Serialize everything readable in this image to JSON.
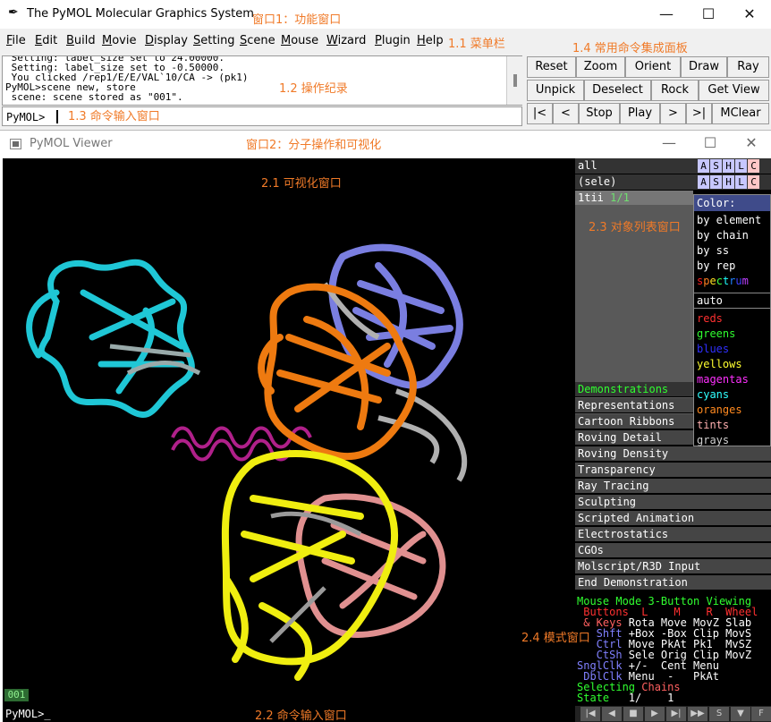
{
  "window1": {
    "title": "The PyMOL Molecular Graphics System",
    "controls": {
      "minimize": "—",
      "maximize": "☐",
      "close": "✕"
    },
    "menu": [
      {
        "label": "File",
        "u": "F",
        "rest": "ile"
      },
      {
        "label": "Edit",
        "u": "E",
        "rest": "dit"
      },
      {
        "label": "Build",
        "u": "B",
        "rest": "uild"
      },
      {
        "label": "Movie",
        "u": "M",
        "rest": "ovie"
      },
      {
        "label": "Display",
        "u": "D",
        "rest": "isplay"
      },
      {
        "label": "Setting",
        "u": "S",
        "rest": "etting"
      },
      {
        "label": "Scene",
        "u": "S",
        "rest": "cene",
        "pre": ""
      },
      {
        "label": "Mouse",
        "u": "M",
        "rest": "ouse"
      },
      {
        "label": "Wizard",
        "u": "W",
        "rest": "izard"
      },
      {
        "label": "Plugin",
        "u": "P",
        "rest": "lugin"
      },
      {
        "label": "Help",
        "u": "H",
        "rest": "elp"
      }
    ],
    "log_lines": [
      " Setting: label_size set to 24.00000.",
      " Setting: label_size set to -0.50000.",
      " You clicked /rep1/E/E/VAL`10/CA -> (pk1)",
      "PyMOL>scene new, store",
      " scene: scene stored as \"001\"."
    ],
    "command_prompt": "PyMOL>",
    "buttons": {
      "row1": [
        "Reset",
        "Zoom",
        "Orient",
        "Draw",
        "Ray"
      ],
      "row2": [
        "Unpick",
        "Deselect",
        "Rock",
        "Get View"
      ],
      "row3": [
        "|<",
        "<",
        "Stop",
        "Play",
        ">",
        ">|",
        "MClear"
      ]
    }
  },
  "window2": {
    "title": "PyMOL Viewer",
    "controls": {
      "minimize": "—",
      "maximize": "☐",
      "close": "✕"
    },
    "scene_badge": "001",
    "command_prompt": "PyMOL>_",
    "objects": [
      {
        "name": "all",
        "state": ""
      },
      {
        "name": "(sele)",
        "state": ""
      },
      {
        "name": "1tii",
        "state": "1/1"
      }
    ],
    "ashlc": [
      "A",
      "S",
      "H",
      "L",
      "C"
    ],
    "color_menu": {
      "header": "Color:",
      "items_top": [
        "by element",
        "by chain",
        "by ss",
        "by rep"
      ],
      "spectrum": [
        "s",
        "p",
        "e",
        "c",
        "t",
        "r",
        "u",
        "m"
      ],
      "auto": "auto",
      "items": [
        {
          "label": "reds",
          "color": "#ff3030"
        },
        {
          "label": "greens",
          "color": "#30ff30"
        },
        {
          "label": "blues",
          "color": "#3030ff"
        },
        {
          "label": "yellows",
          "color": "#ffff30"
        },
        {
          "label": "magentas",
          "color": "#ff30ff"
        },
        {
          "label": "cyans",
          "color": "#30ffff"
        },
        {
          "label": "oranges",
          "color": "#ff8a20"
        },
        {
          "label": "tints",
          "color": "#ffb0b0"
        },
        {
          "label": "grays",
          "color": "#d0d0d0"
        }
      ]
    },
    "demos": {
      "title": "Demonstrations",
      "items": [
        "Representations",
        "Cartoon Ribbons",
        "Roving Detail",
        "Roving Density",
        "Transparency",
        "Ray Tracing",
        "Sculpting",
        "Scripted Animation",
        "Electrostatics",
        "CGOs",
        "Molscript/R3D Input",
        "End Demonstration"
      ]
    },
    "mouse_mode": {
      "title": "Mouse Mode 3-Button Viewing",
      "buttons_line": " Buttons  L    M    R  Wheel",
      "rows": [
        {
          "label": " & Keys",
          "vals": " Rota Move MovZ Slab"
        },
        {
          "label": "   Shft",
          "vals": " +Box -Box Clip MovS"
        },
        {
          "label": "   Ctrl",
          "vals": " Move PkAt Pk1  MvSZ"
        },
        {
          "label": "   CtSh",
          "vals": " Sele Orig Clip MovZ"
        },
        {
          "label": "SnglClk",
          "vals": " +/-  Cent Menu"
        },
        {
          "label": " DblClk",
          "vals": " Menu  -   PkAt"
        }
      ],
      "selecting": "Selecting",
      "selecting_val": "Chains",
      "state": "State",
      "state_val": "   1/    1"
    },
    "vcr": [
      "|◀",
      "◀",
      "■",
      "▶",
      "▶|",
      "▶▶",
      "S",
      "▼",
      "F"
    ]
  },
  "annotations": {
    "win1": "窗口1：功能窗口",
    "menubar": "1.1 菜单栏",
    "log": "1.2 操作纪录",
    "cmd": "1.3 命令输入窗口",
    "panel": "1.4 常用命令集成面板",
    "win2": "窗口2：分子操作和可视化",
    "viewer": "2.1 可视化窗口",
    "cmd2": "2.2 命令输入窗口",
    "objlist": "2.3 对象列表窗口",
    "mode": "2.4 模式窗口"
  },
  "colors": {
    "ashlc": [
      "#c7c7ff",
      "#c7c7ff",
      "#c7c7ff",
      "#c7c7ff",
      "#ffc7c7"
    ],
    "protein_cyan": "#1fc7d6",
    "protein_blue": "#7a7ee0",
    "protein_orange": "#ee7a10",
    "protein_yellow": "#f0ee10",
    "protein_pink": "#e09090",
    "helix_magenta": "#b0208a",
    "annotation": "#f07a28"
  }
}
